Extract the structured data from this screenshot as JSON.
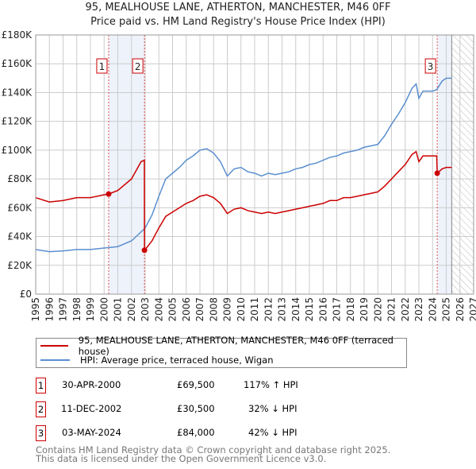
{
  "chart_data": {
    "type": "line",
    "title": "95, MEALHOUSE LANE, ATHERTON, MANCHESTER, M46 0FF",
    "subtitle": "Price paid vs. HM Land Registry's House Price Index (HPI)",
    "xlim": [
      1995,
      2027
    ],
    "ylim": [
      0,
      180000
    ],
    "x_ticks": [
      "1995",
      "1996",
      "1997",
      "1998",
      "1999",
      "2000",
      "2001",
      "2002",
      "2003",
      "2004",
      "2005",
      "2006",
      "2007",
      "2008",
      "2009",
      "2010",
      "2011",
      "2012",
      "2013",
      "2014",
      "2015",
      "2016",
      "2017",
      "2018",
      "2019",
      "2020",
      "2021",
      "2022",
      "2023",
      "2024",
      "2025",
      "2026",
      "2027"
    ],
    "y_ticks": [
      "£0",
      "£20K",
      "£40K",
      "£60K",
      "£80K",
      "£100K",
      "£120K",
      "£140K",
      "£160K",
      "£180K"
    ],
    "grid": true,
    "colors": {
      "property": "#cc0000",
      "hpi": "#5b8fd0",
      "shade": "#eef2fb"
    },
    "series": [
      {
        "name": "95, MEALHOUSE LANE, ATHERTON, MANCHESTER, M46 0FF (terraced house)",
        "color": "#cc0000",
        "x": [
          1995,
          1996,
          1997,
          1998,
          1999,
          2000,
          2000.33,
          2001,
          2002,
          2002.7,
          2002.94,
          2002.95,
          2003,
          2003.5,
          2004,
          2004.5,
          2005,
          2005.5,
          2006,
          2006.5,
          2007,
          2007.5,
          2008,
          2008.5,
          2009,
          2009.5,
          2010,
          2010.5,
          2011,
          2011.5,
          2012,
          2012.5,
          2013,
          2013.5,
          2014,
          2014.5,
          2015,
          2015.5,
          2016,
          2016.5,
          2017,
          2017.5,
          2018,
          2018.5,
          2019,
          2019.5,
          2020,
          2020.5,
          2021,
          2021.5,
          2022,
          2022.5,
          2022.8,
          2023,
          2023.3,
          2023.7,
          2024.3,
          2024.34,
          2024.7,
          2025,
          2025.4
        ],
        "y": [
          67000,
          64000,
          65000,
          67000,
          67000,
          69000,
          69500,
          72000,
          80000,
          92000,
          93000,
          30500,
          31000,
          37000,
          46000,
          54000,
          57000,
          60000,
          63000,
          65000,
          68000,
          69000,
          67000,
          63000,
          56000,
          59000,
          60000,
          58000,
          57000,
          56000,
          57000,
          56000,
          57000,
          58000,
          59000,
          60000,
          61000,
          62000,
          63000,
          65000,
          65000,
          67000,
          67000,
          68000,
          69000,
          70000,
          71000,
          75000,
          80000,
          85000,
          90000,
          97000,
          99000,
          92000,
          96000,
          96000,
          96000,
          84000,
          87000,
          88000,
          88000
        ]
      },
      {
        "name": "HPI: Average price, terraced house, Wigan",
        "color": "#5b8fd0",
        "x": [
          1995,
          1996,
          1997,
          1998,
          1999,
          2000,
          2001,
          2002,
          2002.9,
          2003,
          2003.5,
          2004,
          2004.5,
          2005,
          2005.5,
          2006,
          2006.5,
          2007,
          2007.5,
          2008,
          2008.5,
          2009,
          2009.5,
          2010,
          2010.5,
          2011,
          2011.5,
          2012,
          2012.5,
          2013,
          2013.5,
          2014,
          2014.5,
          2015,
          2015.5,
          2016,
          2016.5,
          2017,
          2017.5,
          2018,
          2018.5,
          2019,
          2019.5,
          2020,
          2020.5,
          2021,
          2021.5,
          2022,
          2022.5,
          2022.8,
          2023,
          2023.3,
          2023.7,
          2024,
          2024.3,
          2024.7,
          2025,
          2025.4
        ],
        "y": [
          31000,
          29500,
          30000,
          31000,
          31000,
          32000,
          33000,
          37000,
          45000,
          46000,
          55000,
          68000,
          80000,
          84000,
          88000,
          93000,
          96000,
          100000,
          101000,
          98000,
          92000,
          82000,
          87000,
          88000,
          85000,
          84000,
          82000,
          84000,
          83000,
          84000,
          85000,
          87000,
          88000,
          90000,
          91000,
          93000,
          95000,
          96000,
          98000,
          99000,
          100000,
          102000,
          103000,
          104000,
          110000,
          118000,
          125000,
          133000,
          143000,
          146000,
          136000,
          141000,
          141000,
          141000,
          142000,
          148000,
          150000,
          150000
        ]
      }
    ],
    "sales": [
      {
        "id": "1",
        "date": "30-APR-2000",
        "x": 2000.33,
        "price": "£69,500",
        "value": 69500,
        "hpi": "117% ↑ HPI"
      },
      {
        "id": "2",
        "date": "11-DEC-2002",
        "x": 2002.95,
        "price": "£30,500",
        "value": 30500,
        "hpi": "32% ↓ HPI"
      },
      {
        "id": "3",
        "date": "03-MAY-2024",
        "x": 2024.34,
        "price": "£84,000",
        "value": 84000,
        "hpi": "42% ↓ HPI"
      }
    ],
    "shaded_ranges": [
      [
        2000.33,
        2002.95
      ],
      [
        2024.34,
        2025.4
      ]
    ],
    "forecast_from": 2025.4
  },
  "footer": {
    "line1": "Contains HM Land Registry data © Crown copyright and database right 2025.",
    "line2": "This data is licensed under the Open Government Licence v3.0."
  }
}
